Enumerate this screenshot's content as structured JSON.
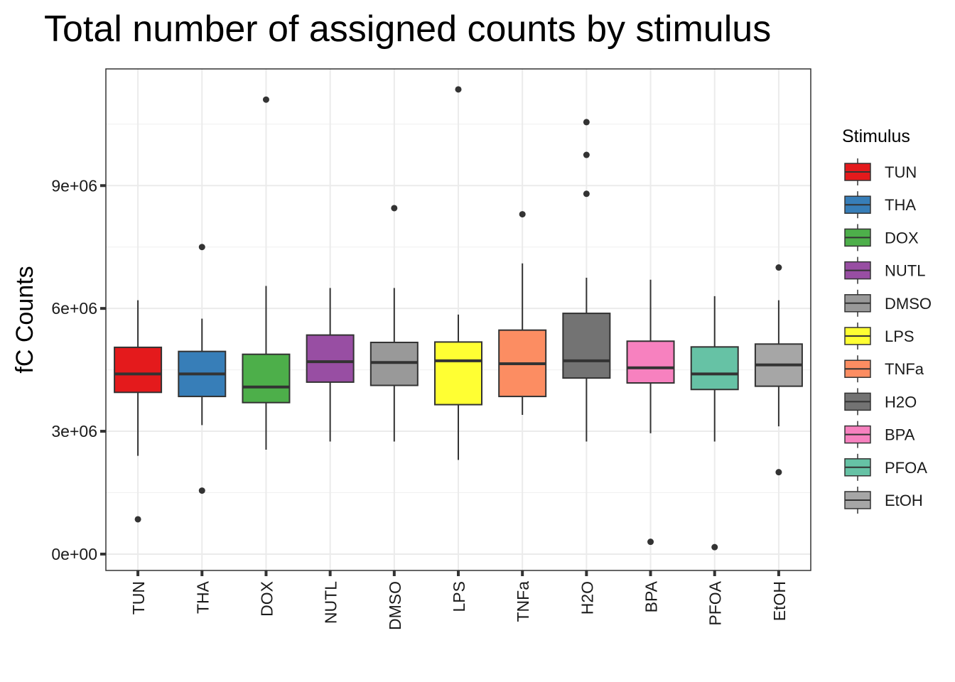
{
  "chart_data": {
    "type": "box",
    "title": "Total number of assigned counts by stimulus",
    "xlabel": "",
    "ylabel": "fC Counts",
    "ylim": [
      -400000,
      11850000
    ],
    "y_ticks": [
      0,
      3000000,
      6000000,
      9000000
    ],
    "y_tick_labels": [
      "0e+00",
      "3e+06",
      "6e+06",
      "9e+06"
    ],
    "grid": true,
    "legend": {
      "title": "Stimulus",
      "position": "right"
    },
    "categories": [
      "TUN",
      "THA",
      "DOX",
      "NUTL",
      "DMSO",
      "LPS",
      "TNFa",
      "H2O",
      "BPA",
      "PFOA",
      "EtOH"
    ],
    "series": [
      {
        "name": "TUN",
        "color": "#E41A1C",
        "whisker_low": 2400000,
        "q1": 3950000,
        "median": 4400000,
        "q3": 5050000,
        "whisker_high": 6200000,
        "outliers": [
          850000
        ]
      },
      {
        "name": "THA",
        "color": "#377EB8",
        "whisker_low": 3150000,
        "q1": 3850000,
        "median": 4400000,
        "q3": 4950000,
        "whisker_high": 5750000,
        "outliers": [
          7500000,
          1550000
        ]
      },
      {
        "name": "DOX",
        "color": "#4DAF4A",
        "whisker_low": 2550000,
        "q1": 3700000,
        "median": 4080000,
        "q3": 4880000,
        "whisker_high": 6550000,
        "outliers": [
          11100000
        ]
      },
      {
        "name": "NUTL",
        "color": "#984EA3",
        "whisker_low": 2750000,
        "q1": 4200000,
        "median": 4700000,
        "q3": 5350000,
        "whisker_high": 6500000,
        "outliers": []
      },
      {
        "name": "DMSO",
        "color": "#999999",
        "whisker_low": 2750000,
        "q1": 4120000,
        "median": 4680000,
        "q3": 5170000,
        "whisker_high": 6500000,
        "outliers": [
          8450000
        ]
      },
      {
        "name": "LPS",
        "color": "#FFFF33",
        "whisker_low": 2300000,
        "q1": 3650000,
        "median": 4720000,
        "q3": 5180000,
        "whisker_high": 5850000,
        "outliers": [
          11350000
        ]
      },
      {
        "name": "TNFa",
        "color": "#FC8D62",
        "whisker_low": 3400000,
        "q1": 3850000,
        "median": 4650000,
        "q3": 5470000,
        "whisker_high": 7100000,
        "outliers": [
          8300000
        ]
      },
      {
        "name": "H2O",
        "color": "#737373",
        "whisker_low": 2750000,
        "q1": 4300000,
        "median": 4720000,
        "q3": 5880000,
        "whisker_high": 6750000,
        "outliers": [
          10550000,
          9750000,
          8800000
        ]
      },
      {
        "name": "BPA",
        "color": "#F781BF",
        "whisker_low": 2950000,
        "q1": 4180000,
        "median": 4550000,
        "q3": 5200000,
        "whisker_high": 6700000,
        "outliers": [
          300000
        ]
      },
      {
        "name": "PFOA",
        "color": "#66C2A5",
        "whisker_low": 2750000,
        "q1": 4020000,
        "median": 4400000,
        "q3": 5060000,
        "whisker_high": 6300000,
        "outliers": [
          170000
        ]
      },
      {
        "name": "EtOH",
        "color": "#A6A6A6",
        "whisker_low": 3120000,
        "q1": 4100000,
        "median": 4620000,
        "q3": 5130000,
        "whisker_high": 6200000,
        "outliers": [
          7000000,
          2000000
        ]
      }
    ]
  }
}
